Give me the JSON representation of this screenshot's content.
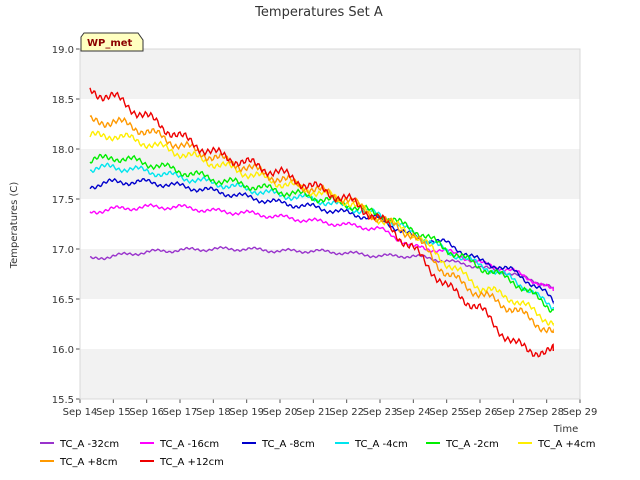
{
  "chart_data": {
    "type": "line",
    "title": "Temperatures Set A",
    "xlabel": "Time",
    "ylabel": "Temperatures (C)",
    "ylim": [
      15.5,
      19.0
    ],
    "yticks": [
      "15.5",
      "16.0",
      "16.5",
      "17.0",
      "17.5",
      "18.0",
      "18.5",
      "19.0"
    ],
    "xlim": [
      14,
      29
    ],
    "xticks": [
      "Sep 14",
      "Sep 15",
      "Sep 16",
      "Sep 17",
      "Sep 18",
      "Sep 19",
      "Sep 20",
      "Sep 21",
      "Sep 22",
      "Sep 23",
      "Sep 24",
      "Sep 25",
      "Sep 26",
      "Sep 27",
      "Sep 28",
      "Sep 29"
    ],
    "badge": "WP_met",
    "grid": "horizontal bands",
    "legend_position": "bottom",
    "series": [
      {
        "name": "TC_A -32cm",
        "color": "#9933cc",
        "x": [
          14.3,
          15,
          16,
          17,
          18,
          19,
          20,
          21,
          22,
          23,
          24,
          25,
          26,
          27,
          28,
          28.2
        ],
        "values": [
          16.9,
          16.93,
          16.97,
          16.99,
          17.0,
          17.0,
          16.98,
          16.98,
          16.96,
          16.93,
          16.93,
          16.88,
          16.82,
          16.75,
          16.64,
          16.6
        ]
      },
      {
        "name": "TC_A -16cm",
        "color": "#ff00ff",
        "x": [
          14.3,
          15,
          16,
          17,
          18,
          19,
          20,
          21,
          22,
          23,
          24,
          25,
          26,
          27,
          28,
          28.2
        ],
        "values": [
          17.37,
          17.4,
          17.42,
          17.42,
          17.38,
          17.36,
          17.32,
          17.28,
          17.24,
          17.2,
          17.02,
          16.98,
          16.86,
          16.78,
          16.62,
          16.58
        ]
      },
      {
        "name": "TC_A -8cm",
        "color": "#0000cc",
        "x": [
          14.3,
          15,
          16,
          17,
          18,
          19,
          20,
          21,
          22,
          23,
          24,
          25,
          26,
          27,
          28,
          28.2
        ],
        "values": [
          17.63,
          17.67,
          17.67,
          17.63,
          17.58,
          17.52,
          17.46,
          17.42,
          17.36,
          17.3,
          17.12,
          17.06,
          16.88,
          16.78,
          16.55,
          16.48
        ]
      },
      {
        "name": "TC_A -4cm",
        "color": "#00e5ee",
        "x": [
          14.3,
          15,
          16,
          17,
          18,
          19,
          20,
          21,
          22,
          23,
          24,
          25,
          26,
          27,
          28,
          28.2
        ],
        "values": [
          17.8,
          17.82,
          17.78,
          17.72,
          17.66,
          17.6,
          17.54,
          17.5,
          17.42,
          17.34,
          17.16,
          16.98,
          16.84,
          16.7,
          16.46,
          16.42
        ]
      },
      {
        "name": "TC_A -2cm",
        "color": "#00ee00",
        "x": [
          14.3,
          15,
          16,
          17,
          18,
          19,
          20,
          21,
          22,
          23,
          24,
          25,
          26,
          27,
          28,
          28.2
        ],
        "values": [
          17.88,
          17.92,
          17.86,
          17.78,
          17.7,
          17.64,
          17.58,
          17.52,
          17.45,
          17.34,
          17.2,
          17.0,
          16.82,
          16.68,
          16.44,
          16.4
        ]
      },
      {
        "name": "TC_A +4cm",
        "color": "#ffee00",
        "x": [
          14.3,
          15,
          16,
          17,
          18,
          19,
          20,
          21,
          22,
          23,
          24,
          25,
          26,
          27,
          28,
          28.2
        ],
        "values": [
          18.12,
          18.14,
          18.06,
          17.96,
          17.86,
          17.76,
          17.66,
          17.58,
          17.48,
          17.3,
          17.16,
          16.86,
          16.62,
          16.5,
          16.3,
          16.26
        ]
      },
      {
        "name": "TC_A +8cm",
        "color": "#ff9900",
        "x": [
          14.3,
          15,
          16,
          17,
          18,
          19,
          20,
          21,
          22,
          23,
          24,
          25,
          26,
          27,
          28,
          28.2
        ],
        "values": [
          18.27,
          18.28,
          18.18,
          18.04,
          17.92,
          17.82,
          17.7,
          17.6,
          17.5,
          17.3,
          17.14,
          16.75,
          16.55,
          16.4,
          16.2,
          16.16
        ]
      },
      {
        "name": "TC_A +12cm",
        "color": "#ee0000",
        "x": [
          14.3,
          15,
          16,
          17,
          18,
          19,
          20,
          21,
          22,
          23,
          24,
          25,
          26,
          27,
          28,
          28.2
        ],
        "values": [
          18.58,
          18.52,
          18.32,
          18.12,
          17.96,
          17.86,
          17.76,
          17.62,
          17.5,
          17.3,
          17.0,
          16.62,
          16.4,
          16.05,
          15.95,
          15.98
        ]
      }
    ]
  }
}
